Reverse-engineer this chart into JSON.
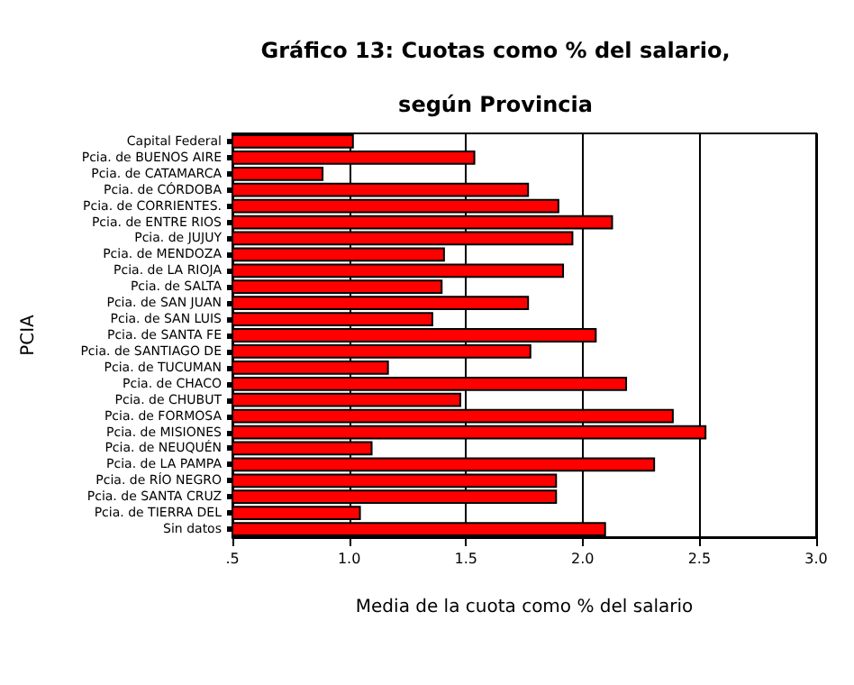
{
  "chart_data": {
    "type": "bar",
    "orientation": "horizontal",
    "title": "Gráfico 13: Cuotas como % del salario,\nsegún Provincia",
    "xlabel": "Media de la cuota como % del salario",
    "ylabel": "PCIA",
    "categories": [
      "Capital Federal",
      "Pcia. de BUENOS AIRE",
      "Pcia. de CATAMARCA",
      "Pcia. de CÓRDOBA",
      "Pcia. de CORRIENTES.",
      "Pcia. de ENTRE RIOS",
      "Pcia. de JUJUY",
      "Pcia. de MENDOZA",
      "Pcia. de LA RIOJA",
      "Pcia. de SALTA",
      "Pcia. de SAN JUAN",
      "Pcia. de SAN LUIS",
      "Pcia. de SANTA FE",
      "Pcia. de SANTIAGO DE",
      "Pcia. de TUCUMAN",
      "Pcia. de CHACO",
      "Pcia. de CHUBUT",
      "Pcia. de FORMOSA",
      "Pcia. de MISIONES",
      "Pcia. de NEUQUÉN",
      "Pcia. de LA PAMPA",
      "Pcia. de RÍO NEGRO",
      "Pcia. de SANTA CRUZ",
      "Pcia. de TIERRA DEL",
      "Sin datos"
    ],
    "values": [
      1.02,
      1.54,
      0.89,
      1.77,
      1.9,
      2.13,
      1.96,
      1.41,
      1.92,
      1.4,
      1.77,
      1.36,
      2.06,
      1.78,
      1.17,
      2.19,
      1.48,
      2.39,
      2.53,
      1.1,
      2.31,
      1.89,
      1.89,
      1.05,
      2.1
    ],
    "color": "#ff0000",
    "xlim": [
      0.5,
      3.0
    ],
    "xticks": [
      {
        "value": 0.5,
        "label": ".5"
      },
      {
        "value": 1.0,
        "label": "1.0"
      },
      {
        "value": 1.5,
        "label": "1.5"
      },
      {
        "value": 2.0,
        "label": "2.0"
      },
      {
        "value": 2.5,
        "label": "2.5"
      },
      {
        "value": 3.0,
        "label": "3.0"
      }
    ],
    "grid": "x"
  }
}
